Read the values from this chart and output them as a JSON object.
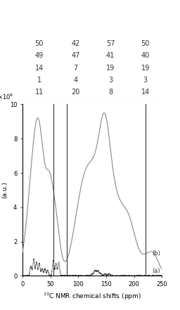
{
  "table_rows": [
    [
      "49",
      "47",
      "41",
      "40"
    ],
    [
      "14",
      "7",
      "19",
      "19"
    ],
    [
      "1",
      "4",
      "3",
      "3"
    ],
    [
      "11",
      "20",
      "8",
      "14"
    ]
  ],
  "table_top_row": [
    "50",
    "42",
    "57",
    "50"
  ],
  "xmin": 0,
  "xmax": 250,
  "ymin": 0,
  "ymax": 10,
  "xlabel": "$^{13}$C NMR chemical shifts (ppm)",
  "ylabel": "(a.u.)",
  "ytick_label": "×10$^{9}$",
  "vlines": [
    55,
    80,
    220
  ],
  "label_a": "(a)",
  "label_b": "(b)",
  "line_color_a": "#444444",
  "line_color_b": "#888888",
  "background_color": "#ffffff",
  "figsize": [
    2.56,
    4.41
  ],
  "dpi": 100
}
